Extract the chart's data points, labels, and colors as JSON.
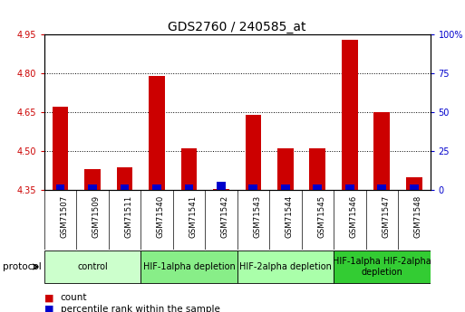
{
  "title": "GDS2760 / 240585_at",
  "samples": [
    "GSM71507",
    "GSM71509",
    "GSM71511",
    "GSM71540",
    "GSM71541",
    "GSM71542",
    "GSM71543",
    "GSM71544",
    "GSM71545",
    "GSM71546",
    "GSM71547",
    "GSM71548"
  ],
  "count_values": [
    4.67,
    4.43,
    4.44,
    4.79,
    4.51,
    4.355,
    4.64,
    4.51,
    4.51,
    4.93,
    4.65,
    4.4
  ],
  "percentile_values": [
    3.7,
    3.6,
    3.6,
    3.6,
    3.6,
    5.3,
    3.6,
    3.6,
    3.6,
    3.6,
    3.6,
    3.6
  ],
  "ylim_left": [
    4.35,
    4.95
  ],
  "ylim_right": [
    0,
    100
  ],
  "left_ticks": [
    4.35,
    4.5,
    4.65,
    4.8,
    4.95
  ],
  "right_ticks": [
    0,
    25,
    50,
    75,
    100
  ],
  "right_tick_labels": [
    "0",
    "25",
    "50",
    "75",
    "100%"
  ],
  "count_color": "#cc0000",
  "percentile_color": "#0000cc",
  "groups": [
    {
      "label": "control",
      "indices": [
        0,
        1,
        2
      ],
      "color": "#ccffcc"
    },
    {
      "label": "HIF-1alpha depletion",
      "indices": [
        3,
        4,
        5
      ],
      "color": "#88ee88"
    },
    {
      "label": "HIF-2alpha depletion",
      "indices": [
        6,
        7,
        8
      ],
      "color": "#aaffaa"
    },
    {
      "label": "HIF-1alpha HIF-2alpha\ndepletion",
      "indices": [
        9,
        10,
        11
      ],
      "color": "#33cc33"
    }
  ],
  "protocol_label": "protocol",
  "legend_count_label": "count",
  "legend_percentile_label": "percentile rank within the sample",
  "left_tick_color": "#cc0000",
  "right_tick_color": "#0000cc",
  "title_fontsize": 10,
  "tick_fontsize": 7,
  "sample_fontsize": 6.2,
  "group_label_fontsize": 7,
  "legend_fontsize": 7.5
}
